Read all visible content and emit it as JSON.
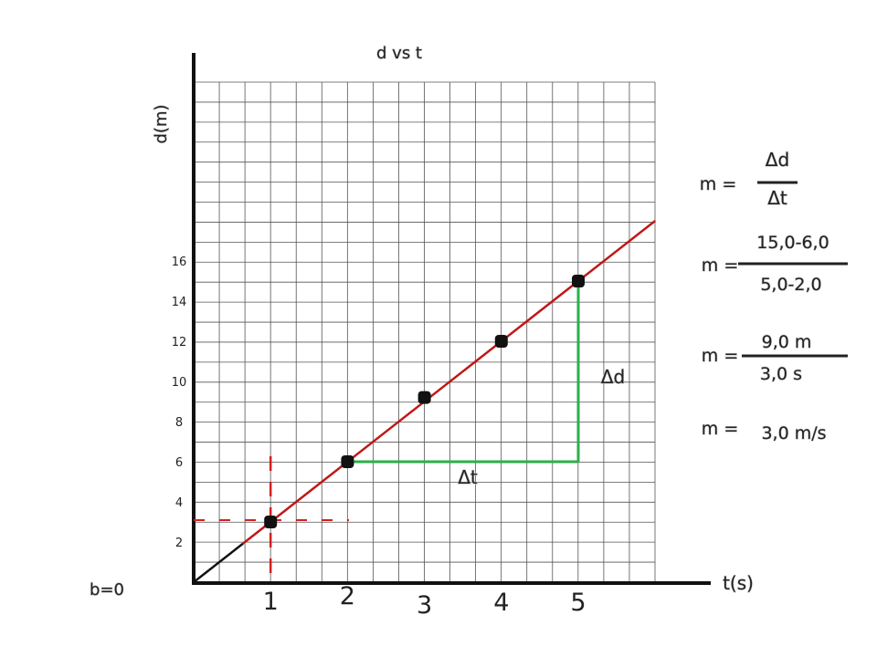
{
  "chart_data": {
    "type": "scatter",
    "title": "d vs t",
    "xlabel": "t(s)",
    "ylabel": "d(m)",
    "x_ticks": [
      "1",
      "2",
      "3",
      "4",
      "5"
    ],
    "y_ticks": [
      "2",
      "4",
      "6",
      "8",
      "10",
      "12",
      "14",
      "16"
    ],
    "points": [
      {
        "x": 1,
        "y": 3.0
      },
      {
        "x": 2,
        "y": 6.0
      },
      {
        "x": 3,
        "y": 9.2
      },
      {
        "x": 4,
        "y": 12.0
      },
      {
        "x": 5,
        "y": 15.0
      }
    ],
    "fit_line": {
      "slope": 3.0,
      "intercept": 0
    },
    "delta_triangle": {
      "x1": 2,
      "y1": 6.0,
      "x2": 5,
      "y2": 15.0,
      "dt_label": "Δt",
      "dd_label": "Δd"
    },
    "intercept_label": "b=0",
    "colors": {
      "line": "#c01818",
      "triangle": "#2bb04a",
      "guide": "#d42020",
      "points": "#111111"
    }
  },
  "formulas": {
    "row1": {
      "lhs": "m =",
      "num": "Δd",
      "den": "Δt"
    },
    "row2": {
      "lhs": "m =",
      "num": "15,0-6,0",
      "den": "5,0-2,0"
    },
    "row3": {
      "lhs": "m =",
      "num": "9,0 m",
      "den": "3,0 s"
    },
    "row4": {
      "lhs": "m =",
      "value": "3,0 m/s"
    }
  }
}
